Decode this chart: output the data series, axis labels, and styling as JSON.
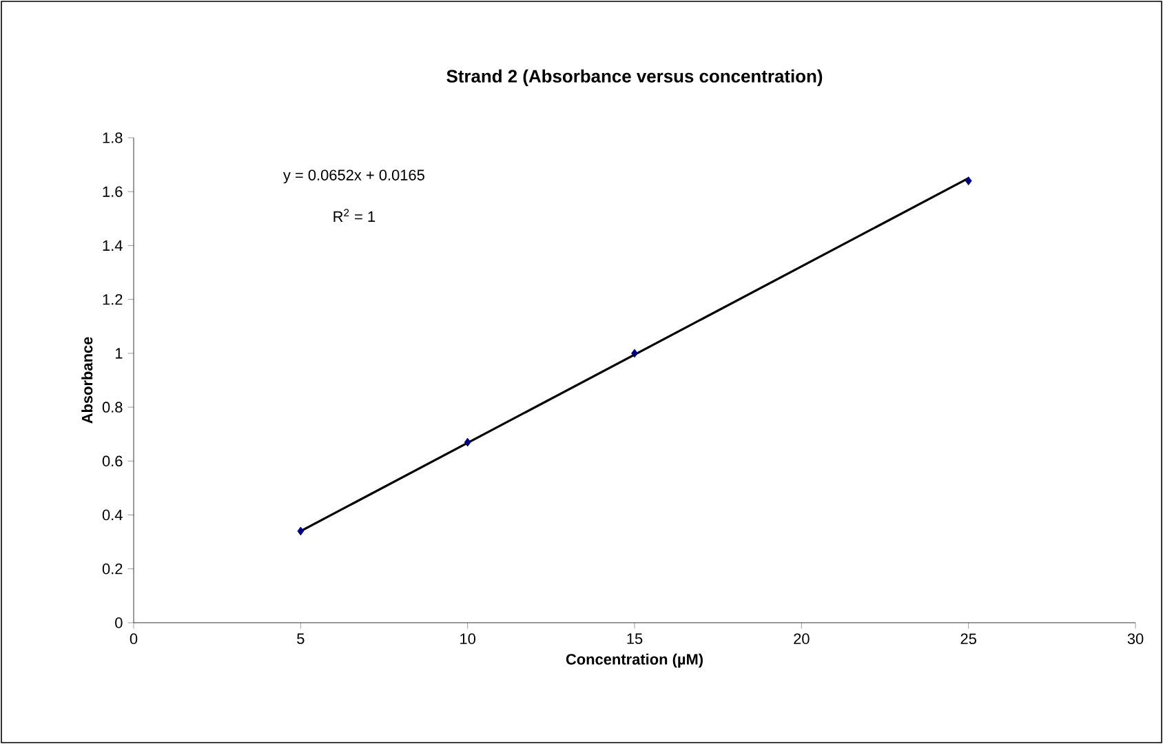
{
  "chart_data": {
    "type": "scatter",
    "title": "Strand 2 (Absorbance versus concentration)",
    "xlabel": "Concentration (µM)",
    "ylabel": "Absorbance",
    "series": [
      {
        "color": "#000080",
        "marker": "diamond",
        "x": [
          5,
          10,
          15,
          25
        ],
        "values": [
          0.34,
          0.67,
          1.0,
          1.64
        ]
      },
      {
        "type": "line",
        "color": "#000000",
        "marker": "none",
        "x": [
          5,
          25
        ],
        "values": [
          0.34,
          1.65
        ]
      }
    ],
    "annotations": [
      "y = 0.0652x + 0.0165",
      "R$^{2}$ = 1"
    ],
    "xlim": [
      0,
      30
    ],
    "xticks": [
      0,
      5,
      10,
      15,
      20,
      25,
      30
    ],
    "ylim": [
      0,
      1.8
    ],
    "yticks": [
      0,
      0.2,
      0.4,
      0.6,
      0.8,
      1,
      1.2,
      1.4,
      1.6,
      1.8
    ],
    "grid": false
  }
}
